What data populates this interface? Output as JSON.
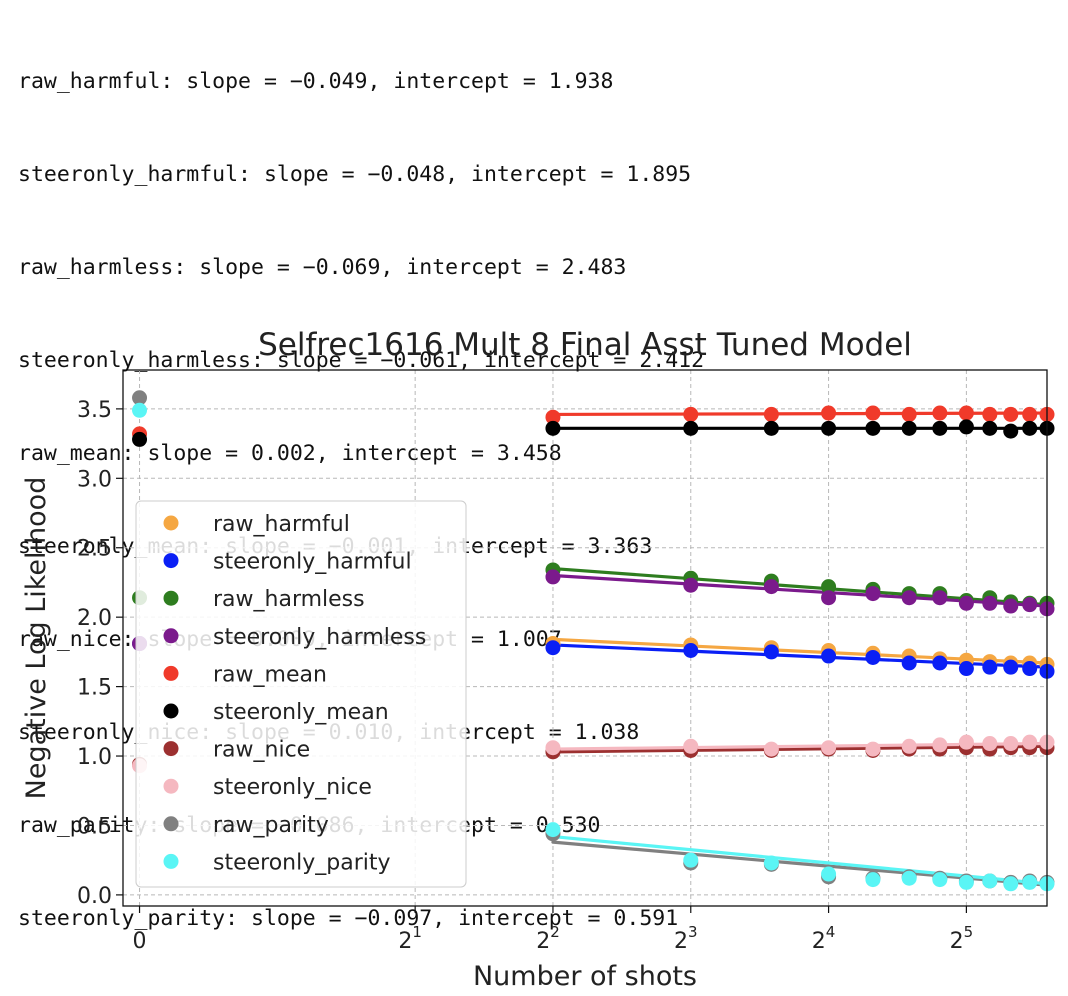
{
  "fit_lines": [
    "raw_harmful: slope = −0.049, intercept = 1.938",
    "steeronly_harmful: slope = −0.048, intercept = 1.895",
    "raw_harmless: slope = −0.069, intercept = 2.483",
    "steeronly_harmless: slope = −0.061, intercept = 2.412",
    "raw_mean: slope = 0.002, intercept = 3.458",
    "steeronly_mean: slope = −0.001, intercept = 3.363",
    "raw_nice: slope = 0.009, intercept = 1.007",
    "steeronly_nice: slope = 0.010, intercept = 1.038",
    "raw_parity: slope = −0.086, intercept = 0.530",
    "steeronly_parity: slope = −0.097, intercept = 0.591"
  ],
  "chart_data": {
    "type": "scatter",
    "title": "Selfrec1616 Mult 8 Final Asst Tuned Model",
    "xlabel": "Number of shots",
    "ylabel": "Negative Log Likelihood",
    "xscale": "symlog-base2",
    "xlim": [
      -0.12,
      48
    ],
    "ylim": [
      -0.08,
      3.78
    ],
    "x_ticks": [
      {
        "value": 0,
        "base": "0",
        "exp": ""
      },
      {
        "value": 2,
        "base": "2",
        "exp": "1"
      },
      {
        "value": 4,
        "base": "2",
        "exp": "2"
      },
      {
        "value": 8,
        "base": "2",
        "exp": "3"
      },
      {
        "value": 16,
        "base": "2",
        "exp": "4"
      },
      {
        "value": 32,
        "base": "2",
        "exp": "5"
      }
    ],
    "y_ticks": [
      {
        "value": 0.0,
        "label": "0.0"
      },
      {
        "value": 0.5,
        "label": "0.5"
      },
      {
        "value": 1.0,
        "label": "1.0"
      },
      {
        "value": 1.5,
        "label": "1.5"
      },
      {
        "value": 2.0,
        "label": "2.0"
      },
      {
        "value": 2.5,
        "label": "2.5"
      },
      {
        "value": 3.0,
        "label": "3.0"
      },
      {
        "value": 3.5,
        "label": "3.5"
      }
    ],
    "grid": true,
    "legend_position": "center-left",
    "x": [
      0,
      4,
      8,
      12,
      16,
      20,
      24,
      28,
      32,
      36,
      40,
      44,
      48
    ],
    "fit_x": [
      4,
      48
    ],
    "series": [
      {
        "name": "raw_harmful",
        "color": "#f5a742",
        "values": [
          1.81,
          1.81,
          1.8,
          1.78,
          1.76,
          1.74,
          1.72,
          1.7,
          1.69,
          1.68,
          1.67,
          1.67,
          1.66
        ],
        "fit": [
          1.84,
          1.67
        ]
      },
      {
        "name": "steeronly_harmful",
        "color": "#0a1ff5",
        "values": [
          1.81,
          1.78,
          1.76,
          1.75,
          1.72,
          1.71,
          1.67,
          1.67,
          1.63,
          1.64,
          1.64,
          1.63,
          1.61
        ],
        "fit": [
          1.8,
          1.64
        ]
      },
      {
        "name": "raw_harmless",
        "color": "#2e7d1f",
        "values": [
          2.14,
          2.34,
          2.28,
          2.26,
          2.22,
          2.2,
          2.17,
          2.17,
          2.12,
          2.14,
          2.11,
          2.1,
          2.1
        ],
        "fit": [
          2.35,
          2.09
        ]
      },
      {
        "name": "steeronly_harmless",
        "color": "#7b1a8c",
        "values": [
          1.81,
          2.29,
          2.23,
          2.22,
          2.14,
          2.17,
          2.14,
          2.14,
          2.1,
          2.1,
          2.08,
          2.09,
          2.06
        ],
        "fit": [
          2.3,
          2.08
        ]
      },
      {
        "name": "raw_mean",
        "color": "#f03a2a",
        "values": [
          3.32,
          3.44,
          3.46,
          3.46,
          3.47,
          3.47,
          3.46,
          3.47,
          3.47,
          3.46,
          3.46,
          3.46,
          3.46
        ],
        "fit": [
          3.46,
          3.47
        ]
      },
      {
        "name": "steeronly_mean",
        "color": "#000000",
        "values": [
          3.28,
          3.36,
          3.36,
          3.36,
          3.36,
          3.36,
          3.36,
          3.36,
          3.37,
          3.36,
          3.34,
          3.36,
          3.36
        ],
        "fit": [
          3.36,
          3.36
        ]
      },
      {
        "name": "raw_nice",
        "color": "#9c3030",
        "values": [
          0.94,
          1.03,
          1.04,
          1.04,
          1.05,
          1.04,
          1.05,
          1.05,
          1.06,
          1.05,
          1.06,
          1.06,
          1.06
        ],
        "fit": [
          1.03,
          1.07
        ]
      },
      {
        "name": "steeronly_nice",
        "color": "#f5b8c0",
        "values": [
          0.93,
          1.06,
          1.07,
          1.05,
          1.06,
          1.05,
          1.07,
          1.08,
          1.1,
          1.09,
          1.09,
          1.1,
          1.1
        ],
        "fit": [
          1.05,
          1.09
        ]
      },
      {
        "name": "raw_parity",
        "color": "#808080",
        "values": [
          3.58,
          0.44,
          0.23,
          0.22,
          0.13,
          0.12,
          0.13,
          0.12,
          0.1,
          0.1,
          0.09,
          0.1,
          0.09
        ],
        "fit": [
          0.38,
          0.07
        ]
      },
      {
        "name": "steeronly_parity",
        "color": "#5af5f5",
        "values": [
          3.49,
          0.47,
          0.25,
          0.23,
          0.15,
          0.11,
          0.12,
          0.11,
          0.09,
          0.1,
          0.08,
          0.09,
          0.08
        ],
        "fit": [
          0.42,
          0.08
        ]
      }
    ]
  }
}
